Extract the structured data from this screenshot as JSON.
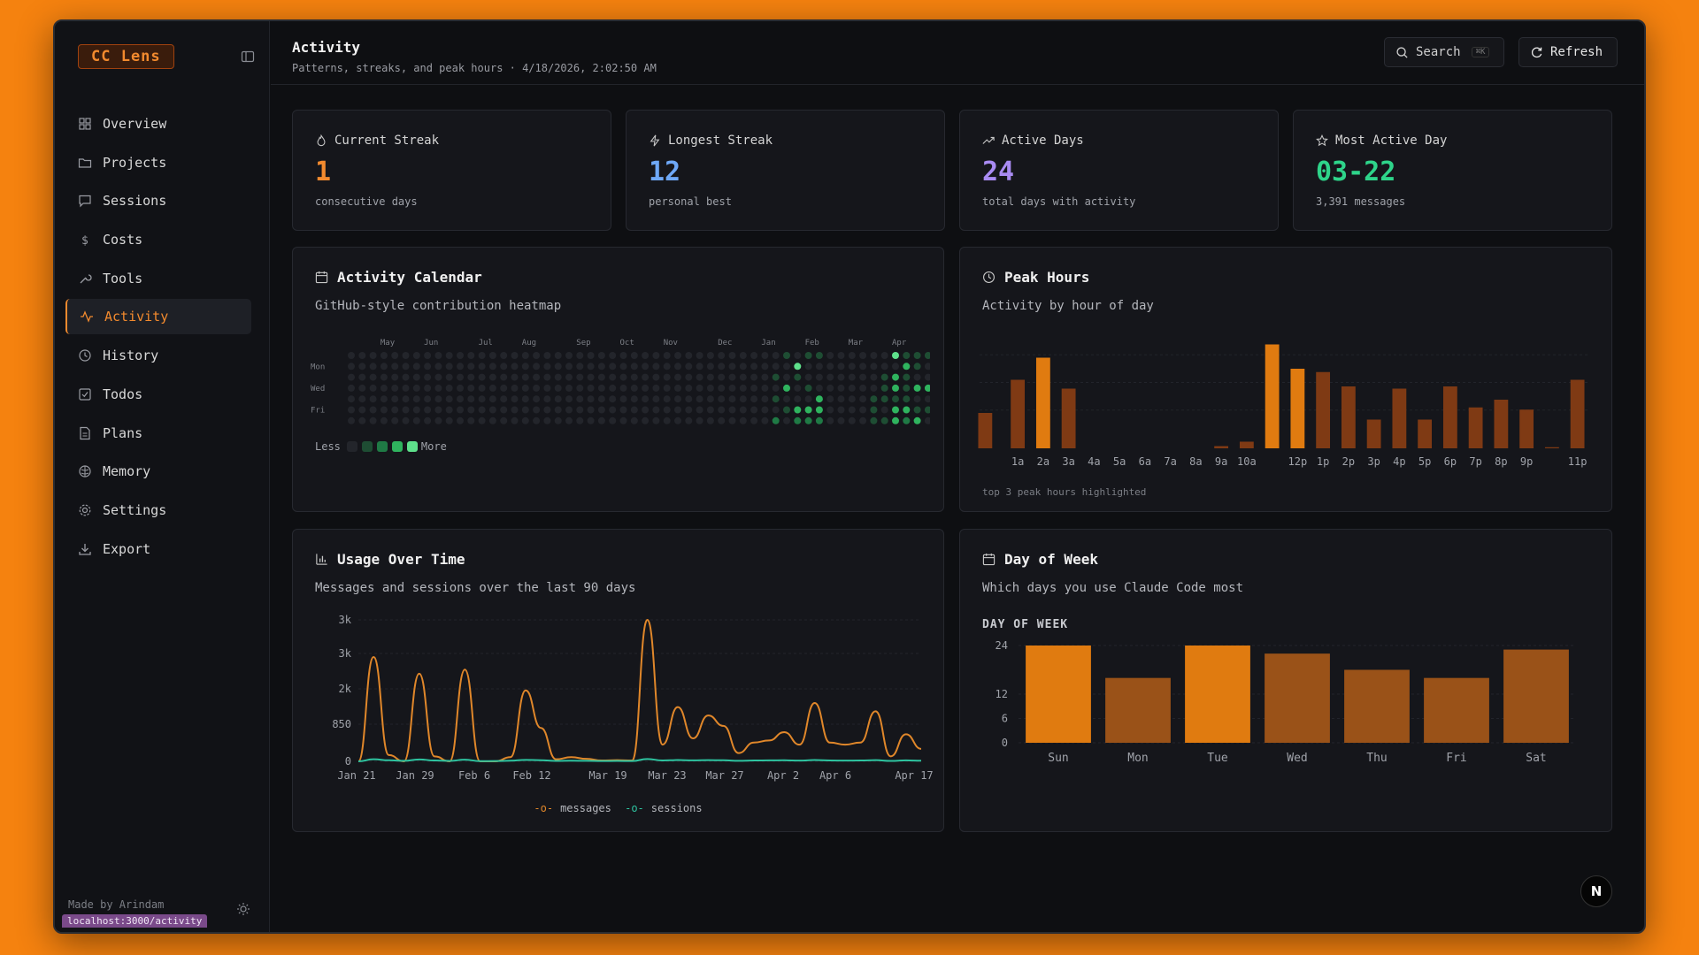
{
  "app": {
    "logo": "CC Lens"
  },
  "sidebar": {
    "items": [
      {
        "label": "Overview",
        "icon": "grid-icon"
      },
      {
        "label": "Projects",
        "icon": "folder-icon"
      },
      {
        "label": "Sessions",
        "icon": "chat-icon"
      },
      {
        "label": "Costs",
        "icon": "dollar-icon"
      },
      {
        "label": "Tools",
        "icon": "wrench-icon"
      },
      {
        "label": "Activity",
        "icon": "activity-icon",
        "active": true
      },
      {
        "label": "History",
        "icon": "history-icon"
      },
      {
        "label": "Todos",
        "icon": "checkbox-icon"
      },
      {
        "label": "Plans",
        "icon": "document-icon"
      },
      {
        "label": "Memory",
        "icon": "brain-icon"
      },
      {
        "label": "Settings",
        "icon": "gear-icon"
      },
      {
        "label": "Export",
        "icon": "download-icon"
      }
    ],
    "footer_text": "Made by Arindam",
    "url_chip": "localhost:3000/activity"
  },
  "header": {
    "title": "Activity",
    "subtitle": "Patterns, streaks, and peak hours · 4/18/2026, 2:02:50 AM",
    "search_label": "Search",
    "search_kbd": "⌘K",
    "refresh_label": "Refresh"
  },
  "stats": [
    {
      "label": "Current Streak",
      "value": "1",
      "sub": "consecutive days",
      "color": "#f28a2e",
      "icon": "flame-icon"
    },
    {
      "label": "Longest Streak",
      "value": "12",
      "sub": "personal best",
      "color": "#6ea8f7",
      "icon": "bolt-icon"
    },
    {
      "label": "Active Days",
      "value": "24",
      "sub": "total days with activity",
      "color": "#a98bf2",
      "icon": "trending-up-icon"
    },
    {
      "label": "Most Active Day",
      "value": "03-22",
      "sub": "3,391 messages",
      "color": "#2ed48a",
      "icon": "star-icon"
    }
  ],
  "calendar": {
    "title": "Activity Calendar",
    "description": "GitHub-style contribution heatmap",
    "months": [
      "May",
      "Jun",
      "Jul",
      "Aug",
      "Sep",
      "Oct",
      "Nov",
      "Dec",
      "Jan",
      "Feb",
      "Mar",
      "Apr"
    ],
    "day_labels": [
      "Mon",
      "Wed",
      "Fri"
    ],
    "legend_less": "Less",
    "legend_more": "More",
    "colors": [
      "#23252b",
      "#1e4d33",
      "#1f7a45",
      "#2fb35e",
      "#5ee08b"
    ]
  },
  "peak_hours": {
    "title": "Peak Hours",
    "description": "Activity by hour of day",
    "note": "top 3 peak hours highlighted",
    "colors": {
      "normal": "#7f3a14",
      "highlight": "#e07b10"
    }
  },
  "usage": {
    "title": "Usage Over Time",
    "description": "Messages and sessions over the last 90 days",
    "legend_messages": "messages",
    "legend_sessions": "sessions",
    "colors": {
      "messages": "#e0872a",
      "sessions": "#2ec4a0"
    }
  },
  "day_of_week": {
    "title": "Day of Week",
    "description": "Which days you use Claude Code most",
    "header": "DAY OF WEEK"
  },
  "chart_data": [
    {
      "type": "heatmap",
      "title": "Activity Calendar",
      "weeks": 52,
      "active_cells": [
        {
          "week": 40,
          "day": 0,
          "level": 1
        },
        {
          "week": 40,
          "day": 3,
          "level": 3
        },
        {
          "week": 40,
          "day": 5,
          "level": 1
        },
        {
          "week": 39,
          "day": 2,
          "level": 1
        },
        {
          "week": 39,
          "day": 4,
          "level": 1
        },
        {
          "week": 39,
          "day": 6,
          "level": 2
        },
        {
          "week": 41,
          "day": 1,
          "level": 4
        },
        {
          "week": 41,
          "day": 2,
          "level": 1
        },
        {
          "week": 41,
          "day": 5,
          "level": 3
        },
        {
          "week": 41,
          "day": 6,
          "level": 2
        },
        {
          "week": 42,
          "day": 0,
          "level": 1
        },
        {
          "week": 42,
          "day": 3,
          "level": 1
        },
        {
          "week": 42,
          "day": 5,
          "level": 3
        },
        {
          "week": 42,
          "day": 6,
          "level": 2
        },
        {
          "week": 43,
          "day": 0,
          "level": 1
        },
        {
          "week": 43,
          "day": 4,
          "level": 3
        },
        {
          "week": 43,
          "day": 5,
          "level": 3
        },
        {
          "week": 43,
          "day": 6,
          "level": 2
        },
        {
          "week": 48,
          "day": 4,
          "level": 1
        },
        {
          "week": 48,
          "day": 5,
          "level": 1
        },
        {
          "week": 48,
          "day": 6,
          "level": 1
        },
        {
          "week": 49,
          "day": 2,
          "level": 1
        },
        {
          "week": 49,
          "day": 3,
          "level": 1
        },
        {
          "week": 49,
          "day": 4,
          "level": 1
        },
        {
          "week": 49,
          "day": 6,
          "level": 1
        },
        {
          "week": 50,
          "day": 0,
          "level": 4
        },
        {
          "week": 50,
          "day": 2,
          "level": 3
        },
        {
          "week": 50,
          "day": 3,
          "level": 3
        },
        {
          "week": 50,
          "day": 4,
          "level": 1
        },
        {
          "week": 50,
          "day": 5,
          "level": 3
        },
        {
          "week": 50,
          "day": 6,
          "level": 3
        },
        {
          "week": 51,
          "day": 0,
          "level": 1
        },
        {
          "week": 51,
          "day": 1,
          "level": 3
        },
        {
          "week": 51,
          "day": 2,
          "level": 1
        },
        {
          "week": 51,
          "day": 3,
          "level": 1
        },
        {
          "week": 51,
          "day": 4,
          "level": 1
        },
        {
          "week": 51,
          "day": 5,
          "level": 3
        },
        {
          "week": 51,
          "day": 6,
          "level": 2
        },
        {
          "week": 52,
          "day": 0,
          "level": 1
        },
        {
          "week": 52,
          "day": 1,
          "level": 1
        },
        {
          "week": 52,
          "day": 3,
          "level": 3
        },
        {
          "week": 52,
          "day": 5,
          "level": 1
        },
        {
          "week": 52,
          "day": 6,
          "level": 3
        },
        {
          "week": 53,
          "day": 0,
          "level": 1
        },
        {
          "week": 53,
          "day": 3,
          "level": 3
        },
        {
          "week": 53,
          "day": 5,
          "level": 1
        }
      ]
    },
    {
      "type": "bar",
      "title": "Peak Hours",
      "categories": [
        "12a",
        "1a",
        "2a",
        "3a",
        "4a",
        "5a",
        "6a",
        "7a",
        "8a",
        "9a",
        "10a",
        "11a",
        "12p",
        "1p",
        "2p",
        "3p",
        "4p",
        "5p",
        "6p",
        "7p",
        "8p",
        "9p",
        "10p",
        "11p"
      ],
      "tick_labels": [
        "1a",
        "2a",
        "3a",
        "4a",
        "5a",
        "6a",
        "7a",
        "8a",
        "9a",
        "10a",
        "12p",
        "1p",
        "2p",
        "3p",
        "4p",
        "5p",
        "6p",
        "7p",
        "8p",
        "9p",
        "11p"
      ],
      "values": [
        32,
        62,
        82,
        54,
        0,
        0,
        0,
        0,
        0,
        2,
        6,
        94,
        72,
        69,
        56,
        26,
        54,
        26,
        56,
        37,
        44,
        35,
        1,
        62
      ],
      "highlighted": [
        2,
        11,
        12
      ],
      "ylim": [
        0,
        100
      ]
    },
    {
      "type": "line",
      "title": "Usage Over Time",
      "x_tick_labels": [
        "Jan 21",
        "Jan 29",
        "Feb 6",
        "Feb 12",
        "Mar 19",
        "Mar 23",
        "Mar 27",
        "Apr 2",
        "Apr 6",
        "Apr 17"
      ],
      "y_tick_labels": [
        "0",
        "850",
        "2k",
        "3k",
        "3k"
      ],
      "ylim": [
        0,
        3391
      ],
      "series": [
        {
          "name": "messages",
          "values": [
            0,
            2500,
            150,
            0,
            2100,
            120,
            0,
            2200,
            0,
            0,
            100,
            1700,
            800,
            50,
            100,
            60,
            20,
            30,
            20,
            3391,
            400,
            1300,
            550,
            1100,
            850,
            200,
            450,
            500,
            700,
            400,
            1400,
            450,
            400,
            450,
            1200,
            120,
            650,
            300
          ]
        },
        {
          "name": "sessions",
          "values": [
            0,
            20,
            10,
            5,
            18,
            8,
            4,
            16,
            2,
            3,
            6,
            14,
            10,
            4,
            6,
            5,
            3,
            4,
            3,
            22,
            8,
            12,
            9,
            11,
            10,
            5,
            8,
            9,
            10,
            7,
            12,
            8,
            7,
            8,
            11,
            4,
            9,
            6
          ]
        }
      ]
    },
    {
      "type": "bar",
      "title": "Day of Week",
      "categories": [
        "Sun",
        "Mon",
        "Tue",
        "Wed",
        "Thu",
        "Fri",
        "Sat"
      ],
      "values": [
        24,
        16,
        24,
        22,
        18,
        16,
        23
      ],
      "y_tick_labels": [
        "0",
        "6",
        "12",
        "24"
      ],
      "ylim": [
        0,
        24
      ],
      "colors": {
        "top": "#e07b10",
        "normal": "#9a5218"
      }
    }
  ]
}
